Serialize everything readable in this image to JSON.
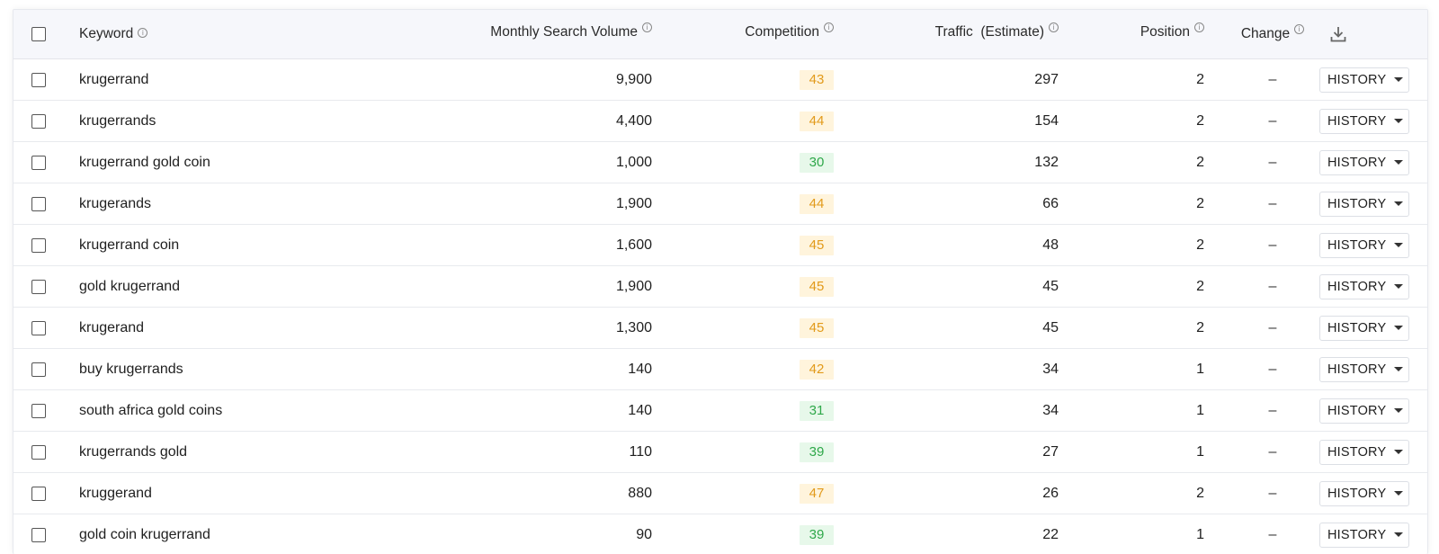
{
  "columns": {
    "keyword": "Keyword",
    "volume": "Monthly Search Volume",
    "competition": "Competition",
    "traffic": "Traffic  (Estimate)",
    "position": "Position",
    "change": "Change"
  },
  "info_glyph": "i",
  "history_label": "HISTORY",
  "colors": {
    "medium_bg": "#fff4dc",
    "medium_text": "#e29a1a",
    "low_bg": "#e7f8ea",
    "low_text": "#2fa84a"
  },
  "rows": [
    {
      "keyword": "krugerrand",
      "volume": "9,900",
      "competition": "43",
      "level": "med",
      "traffic": "297",
      "position": "2",
      "change": "–"
    },
    {
      "keyword": "krugerrands",
      "volume": "4,400",
      "competition": "44",
      "level": "med",
      "traffic": "154",
      "position": "2",
      "change": "–"
    },
    {
      "keyword": "krugerrand gold coin",
      "volume": "1,000",
      "competition": "30",
      "level": "low",
      "traffic": "132",
      "position": "2",
      "change": "–"
    },
    {
      "keyword": "krugerands",
      "volume": "1,900",
      "competition": "44",
      "level": "med",
      "traffic": "66",
      "position": "2",
      "change": "–"
    },
    {
      "keyword": "krugerrand coin",
      "volume": "1,600",
      "competition": "45",
      "level": "med",
      "traffic": "48",
      "position": "2",
      "change": "–"
    },
    {
      "keyword": "gold krugerrand",
      "volume": "1,900",
      "competition": "45",
      "level": "med",
      "traffic": "45",
      "position": "2",
      "change": "–"
    },
    {
      "keyword": "krugerand",
      "volume": "1,300",
      "competition": "45",
      "level": "med",
      "traffic": "45",
      "position": "2",
      "change": "–"
    },
    {
      "keyword": "buy krugerrands",
      "volume": "140",
      "competition": "42",
      "level": "med",
      "traffic": "34",
      "position": "1",
      "change": "–"
    },
    {
      "keyword": "south africa gold coins",
      "volume": "140",
      "competition": "31",
      "level": "low",
      "traffic": "34",
      "position": "1",
      "change": "–"
    },
    {
      "keyword": "krugerrands gold",
      "volume": "110",
      "competition": "39",
      "level": "low",
      "traffic": "27",
      "position": "1",
      "change": "–"
    },
    {
      "keyword": "kruggerand",
      "volume": "880",
      "competition": "47",
      "level": "med",
      "traffic": "26",
      "position": "2",
      "change": "–"
    },
    {
      "keyword": "gold coin krugerrand",
      "volume": "90",
      "competition": "39",
      "level": "low",
      "traffic": "22",
      "position": "1",
      "change": "–"
    }
  ]
}
